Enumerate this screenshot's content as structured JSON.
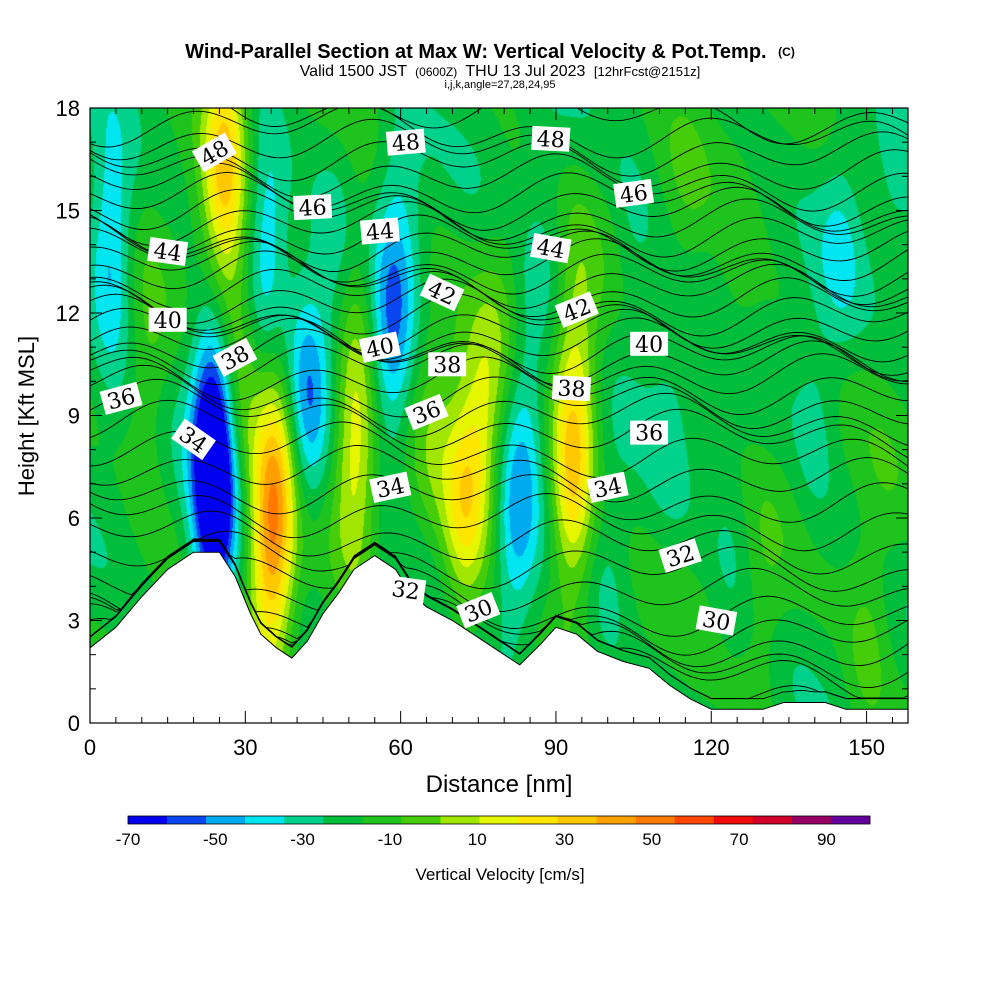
{
  "chart_data": {
    "type": "heatmap",
    "title": "Wind-Parallel Section at Max W: Vertical Velocity & Pot.Temp.",
    "title_mark": "(C)",
    "subtitle_parts": [
      "Valid 1500 JST",
      "(0600Z)",
      "THU 13 Jul 2023",
      "[12hrFcst@2151z]"
    ],
    "subtitle2": "i,j,k,angle=27,28,24,95",
    "xlabel": "Distance [nm]",
    "ylabel": "Height [Kft MSL]",
    "xlim": [
      0,
      158
    ],
    "ylim": [
      0,
      18
    ],
    "x_ticks": [
      "0",
      "30",
      "60",
      "90",
      "120",
      "150"
    ],
    "x_tick_values": [
      0,
      30,
      60,
      90,
      120,
      150
    ],
    "y_ticks": [
      "0",
      "3",
      "6",
      "9",
      "12",
      "15",
      "18"
    ],
    "y_tick_values": [
      0,
      3,
      6,
      9,
      12,
      15,
      18
    ],
    "colorbar": {
      "label": "Vertical Velocity [cm/s]",
      "bounds": [
        -70,
        100
      ],
      "step": 10,
      "tick_labels": [
        "-70",
        "-50",
        "-30",
        "-10",
        "10",
        "30",
        "50",
        "70",
        "90"
      ],
      "tick_values": [
        -70,
        -50,
        -30,
        -10,
        10,
        30,
        50,
        70,
        90
      ],
      "colors": [
        "#0000f0",
        "#0a46f0",
        "#00aaf0",
        "#00e6f0",
        "#00d28c",
        "#00be3c",
        "#1ec31e",
        "#46cd0a",
        "#a0e600",
        "#e6f500",
        "#ffe600",
        "#ffc800",
        "#ffa000",
        "#ff7800",
        "#ff4600",
        "#f00a0a",
        "#d20028",
        "#960064",
        "#64009b"
      ]
    },
    "terrain_kft": [
      [
        0,
        2.2
      ],
      [
        5,
        2.8
      ],
      [
        10,
        3.7
      ],
      [
        15,
        4.5
      ],
      [
        20,
        5.0
      ],
      [
        25,
        5.0
      ],
      [
        28,
        4.3
      ],
      [
        31,
        3.2
      ],
      [
        33,
        2.6
      ],
      [
        36,
        2.2
      ],
      [
        39,
        1.9
      ],
      [
        42,
        2.4
      ],
      [
        45,
        3.2
      ],
      [
        48,
        3.8
      ],
      [
        51,
        4.5
      ],
      [
        55,
        4.9
      ],
      [
        59,
        4.5
      ],
      [
        62,
        3.8
      ],
      [
        65,
        3.4
      ],
      [
        70,
        3.0
      ],
      [
        75,
        2.5
      ],
      [
        80,
        2.0
      ],
      [
        83,
        1.7
      ],
      [
        87,
        2.3
      ],
      [
        90,
        2.8
      ],
      [
        94,
        2.6
      ],
      [
        98,
        2.1
      ],
      [
        103,
        1.8
      ],
      [
        108,
        1.6
      ],
      [
        112,
        1.1
      ],
      [
        116,
        0.7
      ],
      [
        120,
        0.4
      ],
      [
        130,
        0.4
      ],
      [
        134,
        0.6
      ],
      [
        142,
        0.6
      ],
      [
        146,
        0.4
      ],
      [
        158,
        0.4
      ]
    ],
    "updraft_cores": [
      {
        "x": 4,
        "y": 14.0,
        "w": -35
      },
      {
        "x": 11,
        "y": 10.0,
        "w": 15
      },
      {
        "x": 24,
        "y": 6.5,
        "w": -70
      },
      {
        "x": 24,
        "y": 9.5,
        "w": -45
      },
      {
        "x": 25,
        "y": 14.0,
        "w": 20
      },
      {
        "x": 26,
        "y": 17.0,
        "w": 40
      },
      {
        "x": 28,
        "y": 10.5,
        "w": 30
      },
      {
        "x": 34,
        "y": 14.5,
        "w": -30
      },
      {
        "x": 35,
        "y": 5.0,
        "w": 60
      },
      {
        "x": 36,
        "y": 8.5,
        "w": 30
      },
      {
        "x": 42,
        "y": 9.5,
        "w": -35
      },
      {
        "x": 48,
        "y": 13.0,
        "w": -15
      },
      {
        "x": 51,
        "y": 7.5,
        "w": 35
      },
      {
        "x": 51,
        "y": 12.5,
        "w": 20
      },
      {
        "x": 58,
        "y": 11.0,
        "w": -35
      },
      {
        "x": 60,
        "y": 15.0,
        "w": -15
      },
      {
        "x": 66,
        "y": 9.0,
        "w": 15
      },
      {
        "x": 72,
        "y": 6.5,
        "w": 40
      },
      {
        "x": 76,
        "y": 8.5,
        "w": 30
      },
      {
        "x": 80,
        "y": 12.5,
        "w": 10
      },
      {
        "x": 82,
        "y": 5.5,
        "w": -25
      },
      {
        "x": 84,
        "y": 9.5,
        "w": -20
      },
      {
        "x": 88,
        "y": 14.0,
        "w": -10
      },
      {
        "x": 93,
        "y": 7.0,
        "w": 50
      },
      {
        "x": 94,
        "y": 11.0,
        "w": 25
      },
      {
        "x": 100,
        "y": 4.5,
        "w": -10
      },
      {
        "x": 105,
        "y": 14.0,
        "w": -10
      },
      {
        "x": 112,
        "y": 9.0,
        "w": -10
      },
      {
        "x": 115,
        "y": 15.5,
        "w": 8
      },
      {
        "x": 124,
        "y": 6.0,
        "w": -10
      },
      {
        "x": 125,
        "y": 12.0,
        "w": 8
      },
      {
        "x": 130,
        "y": 3.0,
        "w": 10
      },
      {
        "x": 140,
        "y": 9.0,
        "w": -12
      },
      {
        "x": 145,
        "y": 14.0,
        "w": -15
      },
      {
        "x": 150,
        "y": 2.5,
        "w": 15
      },
      {
        "x": 154,
        "y": 6.0,
        "w": 5
      },
      {
        "x": 156,
        "y": 16.5,
        "w": -10
      }
    ],
    "isentrope_values": [
      30,
      32,
      34,
      36,
      38,
      40,
      42,
      44,
      46,
      48
    ],
    "isentrope_base_kft": [
      1.6,
      3.3,
      6.0,
      8.6,
      10.4,
      11.5,
      12.9,
      14.1,
      15.5,
      17.3
    ],
    "contour_labels": [
      {
        "text": "48",
        "x": 24,
        "y": 16.7,
        "angle": -30
      },
      {
        "text": "48",
        "x": 61,
        "y": 17.0,
        "angle": -5
      },
      {
        "text": "48",
        "x": 89,
        "y": 17.1,
        "angle": 3
      },
      {
        "text": "46",
        "x": 43,
        "y": 15.1,
        "angle": -3
      },
      {
        "text": "46",
        "x": 105,
        "y": 15.5,
        "angle": -8
      },
      {
        "text": "44",
        "x": 15,
        "y": 13.8,
        "angle": 8
      },
      {
        "text": "44",
        "x": 56,
        "y": 14.4,
        "angle": -5
      },
      {
        "text": "44",
        "x": 89,
        "y": 13.9,
        "angle": 10
      },
      {
        "text": "42",
        "x": 68,
        "y": 12.6,
        "angle": 25
      },
      {
        "text": "42",
        "x": 94,
        "y": 12.1,
        "angle": -22
      },
      {
        "text": "40",
        "x": 15,
        "y": 11.8,
        "angle": 0
      },
      {
        "text": "40",
        "x": 56,
        "y": 11.0,
        "angle": -12
      },
      {
        "text": "40",
        "x": 108,
        "y": 11.1,
        "angle": 0
      },
      {
        "text": "38",
        "x": 28,
        "y": 10.7,
        "angle": -28
      },
      {
        "text": "38",
        "x": 69,
        "y": 10.5,
        "angle": 0
      },
      {
        "text": "38",
        "x": 93,
        "y": 9.8,
        "angle": 3
      },
      {
        "text": "36",
        "x": 6,
        "y": 9.5,
        "angle": -15
      },
      {
        "text": "36",
        "x": 65,
        "y": 9.1,
        "angle": -22
      },
      {
        "text": "36",
        "x": 108,
        "y": 8.5,
        "angle": 0
      },
      {
        "text": "34",
        "x": 20,
        "y": 8.3,
        "angle": 35
      },
      {
        "text": "34",
        "x": 58,
        "y": 6.9,
        "angle": -12
      },
      {
        "text": "34",
        "x": 100,
        "y": 6.9,
        "angle": -12
      },
      {
        "text": "32",
        "x": 61,
        "y": 3.9,
        "angle": 8
      },
      {
        "text": "32",
        "x": 114,
        "y": 4.9,
        "angle": -18
      },
      {
        "text": "30",
        "x": 75,
        "y": 3.3,
        "angle": -22
      },
      {
        "text": "30",
        "x": 121,
        "y": 3.0,
        "angle": 10
      }
    ]
  }
}
